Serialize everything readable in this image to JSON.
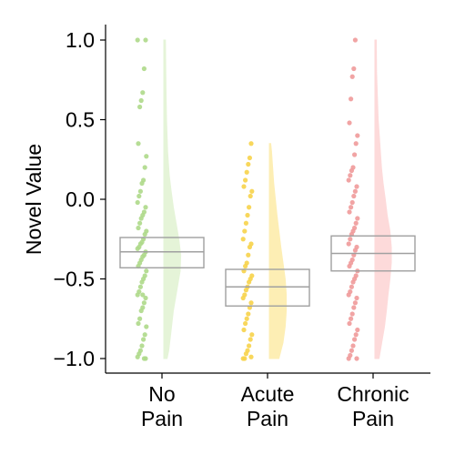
{
  "chart_data": {
    "type": "raincloud",
    "ylabel": "Novel Value",
    "ylim": [
      -1.09,
      1.09
    ],
    "yticks": [
      1.0,
      0.5,
      0.0,
      -0.5,
      -1.0
    ],
    "ytick_labels": [
      "1.0",
      "0.5",
      "0.0",
      "−0.5",
      "−1.0"
    ],
    "groups": [
      {
        "label_lines": [
          "No",
          "Pain"
        ],
        "color": "#aed98a",
        "violin_color": "#e4f4d6",
        "box": {
          "q1": -0.43,
          "median": -0.33,
          "q3": -0.24
        },
        "violin_density": [
          [
            -1.0,
            0.12
          ],
          [
            -0.95,
            0.18
          ],
          [
            -0.85,
            0.25
          ],
          [
            -0.7,
            0.35
          ],
          [
            -0.55,
            0.5
          ],
          [
            -0.45,
            0.6
          ],
          [
            -0.35,
            0.62
          ],
          [
            -0.25,
            0.55
          ],
          [
            -0.15,
            0.45
          ],
          [
            -0.05,
            0.35
          ],
          [
            0.05,
            0.27
          ],
          [
            0.15,
            0.2
          ],
          [
            0.3,
            0.14
          ],
          [
            0.5,
            0.1
          ],
          [
            0.7,
            0.08
          ],
          [
            0.85,
            0.07
          ],
          [
            1.0,
            0.06
          ]
        ],
        "points": [
          1.0,
          1.0,
          0.82,
          0.67,
          0.62,
          0.58,
          0.35,
          0.27,
          0.2,
          0.12,
          0.1,
          0.05,
          0.02,
          -0.02,
          -0.05,
          -0.08,
          -0.1,
          -0.12,
          -0.15,
          -0.18,
          -0.2,
          -0.22,
          -0.25,
          -0.27,
          -0.28,
          -0.3,
          -0.31,
          -0.33,
          -0.35,
          -0.36,
          -0.38,
          -0.4,
          -0.42,
          -0.45,
          -0.48,
          -0.5,
          -0.52,
          -0.55,
          -0.58,
          -0.6,
          -0.62,
          -0.65,
          -0.68,
          -0.7,
          -0.75,
          -0.78,
          -0.8,
          -0.85,
          -0.88,
          -0.92,
          -0.95,
          -0.97,
          -0.99,
          -1.0,
          -1.0,
          -0.6
        ]
      },
      {
        "label_lines": [
          "Acute",
          "Pain"
        ],
        "color": "#f7d34a",
        "violin_color": "#fdeeb1",
        "box": {
          "q1": -0.67,
          "median": -0.55,
          "q3": -0.44
        },
        "violin_density": [
          [
            -1.0,
            0.35
          ],
          [
            -0.9,
            0.5
          ],
          [
            -0.8,
            0.58
          ],
          [
            -0.7,
            0.62
          ],
          [
            -0.6,
            0.62
          ],
          [
            -0.5,
            0.58
          ],
          [
            -0.4,
            0.5
          ],
          [
            -0.3,
            0.42
          ],
          [
            -0.2,
            0.35
          ],
          [
            -0.1,
            0.28
          ],
          [
            0.0,
            0.22
          ],
          [
            0.1,
            0.16
          ],
          [
            0.2,
            0.12
          ],
          [
            0.3,
            0.08
          ],
          [
            0.35,
            0.05
          ]
        ],
        "points": [
          0.35,
          0.26,
          0.22,
          0.17,
          0.12,
          0.08,
          0.05,
          0.02,
          -0.05,
          -0.1,
          -0.15,
          -0.2,
          -0.25,
          -0.28,
          -0.3,
          -0.35,
          -0.4,
          -0.42,
          -0.45,
          -0.48,
          -0.5,
          -0.52,
          -0.55,
          -0.57,
          -0.6,
          -0.62,
          -0.65,
          -0.68,
          -0.72,
          -0.75,
          -0.78,
          -0.82,
          -0.85,
          -0.88,
          -0.92,
          -0.95,
          -0.97,
          -1.0,
          -1.0,
          -0.99
        ]
      },
      {
        "label_lines": [
          "Chronic",
          "Pain"
        ],
        "color": "#f09a9a",
        "violin_color": "#fdd9d9",
        "box": {
          "q1": -0.45,
          "median": -0.34,
          "q3": -0.23
        },
        "violin_density": [
          [
            -1.0,
            0.15
          ],
          [
            -0.9,
            0.25
          ],
          [
            -0.8,
            0.35
          ],
          [
            -0.7,
            0.42
          ],
          [
            -0.6,
            0.48
          ],
          [
            -0.5,
            0.55
          ],
          [
            -0.4,
            0.6
          ],
          [
            -0.3,
            0.6
          ],
          [
            -0.2,
            0.55
          ],
          [
            -0.1,
            0.45
          ],
          [
            0.0,
            0.38
          ],
          [
            0.1,
            0.3
          ],
          [
            0.2,
            0.24
          ],
          [
            0.35,
            0.18
          ],
          [
            0.5,
            0.12
          ],
          [
            0.65,
            0.09
          ],
          [
            0.8,
            0.06
          ],
          [
            1.0,
            0.05
          ]
        ],
        "points": [
          1.0,
          0.82,
          0.77,
          0.63,
          0.48,
          0.4,
          0.35,
          0.28,
          0.2,
          0.18,
          0.15,
          0.12,
          0.08,
          0.05,
          0.02,
          -0.02,
          -0.05,
          -0.08,
          -0.12,
          -0.15,
          -0.18,
          -0.2,
          -0.22,
          -0.25,
          -0.28,
          -0.3,
          -0.32,
          -0.35,
          -0.38,
          -0.4,
          -0.42,
          -0.45,
          -0.48,
          -0.5,
          -0.52,
          -0.55,
          -0.58,
          -0.6,
          -0.62,
          -0.65,
          -0.68,
          -0.72,
          -0.75,
          -0.78,
          -0.82,
          -0.85,
          -0.88,
          -0.92,
          -0.95,
          -0.98,
          -1.0,
          -1.0
        ]
      }
    ]
  }
}
